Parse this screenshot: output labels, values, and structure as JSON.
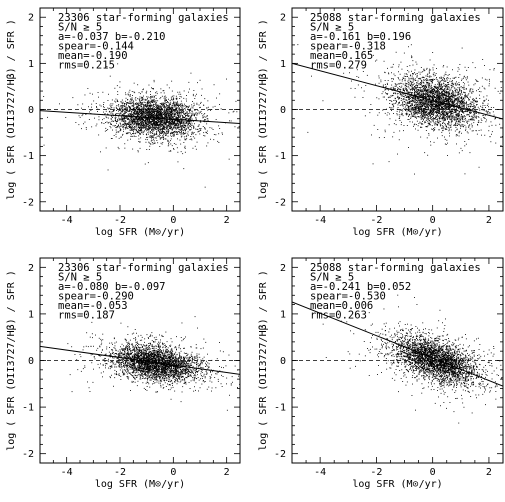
{
  "chart_data": [
    {
      "type": "scatter",
      "xlabel": "log SFR (M⊙/yr)",
      "ylabel": "log ( SFR (OII3727/Hβ) / SFR )",
      "xlim": [
        -5,
        2.5
      ],
      "ylim": [
        -2.2,
        2.2
      ],
      "x_ticks": [
        "-4",
        "-2",
        "0",
        "2"
      ],
      "y_ticks": [
        "-2",
        "-1",
        "0",
        "1",
        "2"
      ],
      "annotation": [
        "23306 star-forming galaxies",
        "S/N ≥ 5",
        "a=-0.037   b=-0.210",
        "spear=-0.144",
        "mean=-0.190",
        "rms=0.215"
      ],
      "fit": {
        "a": -0.037,
        "b": -0.21
      },
      "reference_line_y": 0,
      "cloud": {
        "n_galaxies": 23306,
        "center_x": -0.7,
        "center_y": -0.17,
        "spread_x": 0.8,
        "spread_y": 0.215,
        "rho": -0.1
      },
      "grid": false,
      "legend": "none"
    },
    {
      "type": "scatter",
      "xlabel": "log SFR (M⊙/yr)",
      "ylabel": "log ( SFR (OII3727/Hβ) / SFR )",
      "xlim": [
        -5,
        2.5
      ],
      "ylim": [
        -2.2,
        2.2
      ],
      "x_ticks": [
        "-4",
        "-2",
        "0",
        "2"
      ],
      "y_ticks": [
        "-2",
        "-1",
        "0",
        "1",
        "2"
      ],
      "annotation": [
        "25088 star-forming galaxies",
        "S/N ≥ 5",
        "a=-0.161   b=0.196",
        "spear=-0.318",
        "mean=0.165",
        "rms=0.279"
      ],
      "fit": {
        "a": -0.161,
        "b": 0.196
      },
      "reference_line_y": 0,
      "cloud": {
        "n_galaxies": 25088,
        "center_x": 0.1,
        "center_y": 0.17,
        "spread_x": 0.75,
        "spread_y": 0.28,
        "rho": -0.3
      },
      "grid": false,
      "legend": "none"
    },
    {
      "type": "scatter",
      "xlabel": "log SFR (M⊙/yr)",
      "ylabel": "log ( SFR (OII3727/Hβ) / SFR )",
      "xlim": [
        -5,
        2.5
      ],
      "ylim": [
        -2.2,
        2.2
      ],
      "x_ticks": [
        "-4",
        "-2",
        "0",
        "2"
      ],
      "y_ticks": [
        "-2",
        "-1",
        "0",
        "1",
        "2"
      ],
      "annotation": [
        "23306 star-forming galaxies",
        "S/N ≥ 5",
        "a=-0.080   b=-0.097",
        "spear=-0.290",
        "mean=-0.053",
        "rms=0.187"
      ],
      "fit": {
        "a": -0.08,
        "b": -0.097
      },
      "reference_line_y": 0,
      "cloud": {
        "n_galaxies": 23306,
        "center_x": -0.7,
        "center_y": -0.05,
        "spread_x": 0.8,
        "spread_y": 0.19,
        "rho": -0.3
      },
      "grid": false,
      "legend": "none"
    },
    {
      "type": "scatter",
      "xlabel": "log SFR (M⊙/yr)",
      "ylabel": "log ( SFR (OII3727/Hβ) / SFR )",
      "xlim": [
        -5,
        2.5
      ],
      "ylim": [
        -2.2,
        2.2
      ],
      "x_ticks": [
        "-4",
        "-2",
        "0",
        "2"
      ],
      "y_ticks": [
        "-2",
        "-1",
        "0",
        "1",
        "2"
      ],
      "annotation": [
        "25088 star-forming galaxies",
        "S/N ≥ 5",
        "a=-0.241   b=0.052",
        "spear=-0.530",
        "mean=0.006",
        "rms=0.263"
      ],
      "fit": {
        "a": -0.241,
        "b": 0.052
      },
      "reference_line_y": 0,
      "cloud": {
        "n_galaxies": 25088,
        "center_x": 0.1,
        "center_y": 0.01,
        "spread_x": 0.75,
        "spread_y": 0.26,
        "rho": -0.53
      },
      "grid": false,
      "legend": "none"
    }
  ]
}
